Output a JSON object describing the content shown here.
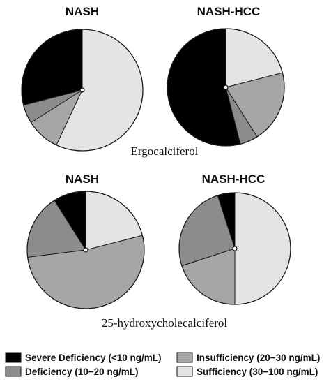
{
  "colors": {
    "Severe Deficiency (<10 ng/mL)": "#000000",
    "Deficiency (10−20 ng/mL)": "#8c8c8c",
    "Insufficiency (20−30 ng/mL)": "#a6a6a6",
    "Sufficiency (30−100 ng/mL)": "#e4e4e4"
  },
  "captions": {
    "top": "Ergocalciferol",
    "bottom": "25-hydroxycholecalciferol"
  },
  "legend": {
    "items": [
      "Severe Deficiency (<10 ng/mL)",
      "Insufficiency (20−30 ng/mL)",
      "Deficiency (10−20 ng/mL)",
      "Sufficiency (30−100 ng/mL)"
    ]
  },
  "chart_data": [
    {
      "type": "pie",
      "title": "NASH",
      "group": "Ergocalciferol",
      "start": "12 o'clock, counter-clockwise",
      "slices": [
        {
          "label": "Severe Deficiency (<10 ng/mL)",
          "value": 29
        },
        {
          "label": "Deficiency (10−20 ng/mL)",
          "value": 5
        },
        {
          "label": "Insufficiency (20−30 ng/mL)",
          "value": 9
        },
        {
          "label": "Sufficiency (30−100 ng/mL)",
          "value": 57
        }
      ]
    },
    {
      "type": "pie",
      "title": "NASH-HCC",
      "group": "Ergocalciferol",
      "start": "12 o'clock, counter-clockwise",
      "slices": [
        {
          "label": "Severe Deficiency (<10 ng/mL)",
          "value": 54
        },
        {
          "label": "Deficiency (10−20 ng/mL)",
          "value": 5
        },
        {
          "label": "Insufficiency (20−30 ng/mL)",
          "value": 20
        },
        {
          "label": "Sufficiency (30−100 ng/mL)",
          "value": 21
        }
      ]
    },
    {
      "type": "pie",
      "title": "NASH",
      "group": "25-hydroxycholecalciferol",
      "start": "12 o'clock, counter-clockwise",
      "slices": [
        {
          "label": "Severe Deficiency (<10 ng/mL)",
          "value": 9
        },
        {
          "label": "Deficiency (10−20 ng/mL)",
          "value": 18
        },
        {
          "label": "Insufficiency (20−30 ng/mL)",
          "value": 52
        },
        {
          "label": "Sufficiency (30−100 ng/mL)",
          "value": 21
        }
      ]
    },
    {
      "type": "pie",
      "title": "NASH-HCC",
      "group": "25-hydroxycholecalciferol",
      "start": "12 o'clock, counter-clockwise",
      "slices": [
        {
          "label": "Severe Deficiency (<10 ng/mL)",
          "value": 5
        },
        {
          "label": "Deficiency (10−20 ng/mL)",
          "value": 25
        },
        {
          "label": "Insufficiency (20−30 ng/mL)",
          "value": 20
        },
        {
          "label": "Sufficiency (30−100 ng/mL)",
          "value": 50
        }
      ]
    }
  ]
}
